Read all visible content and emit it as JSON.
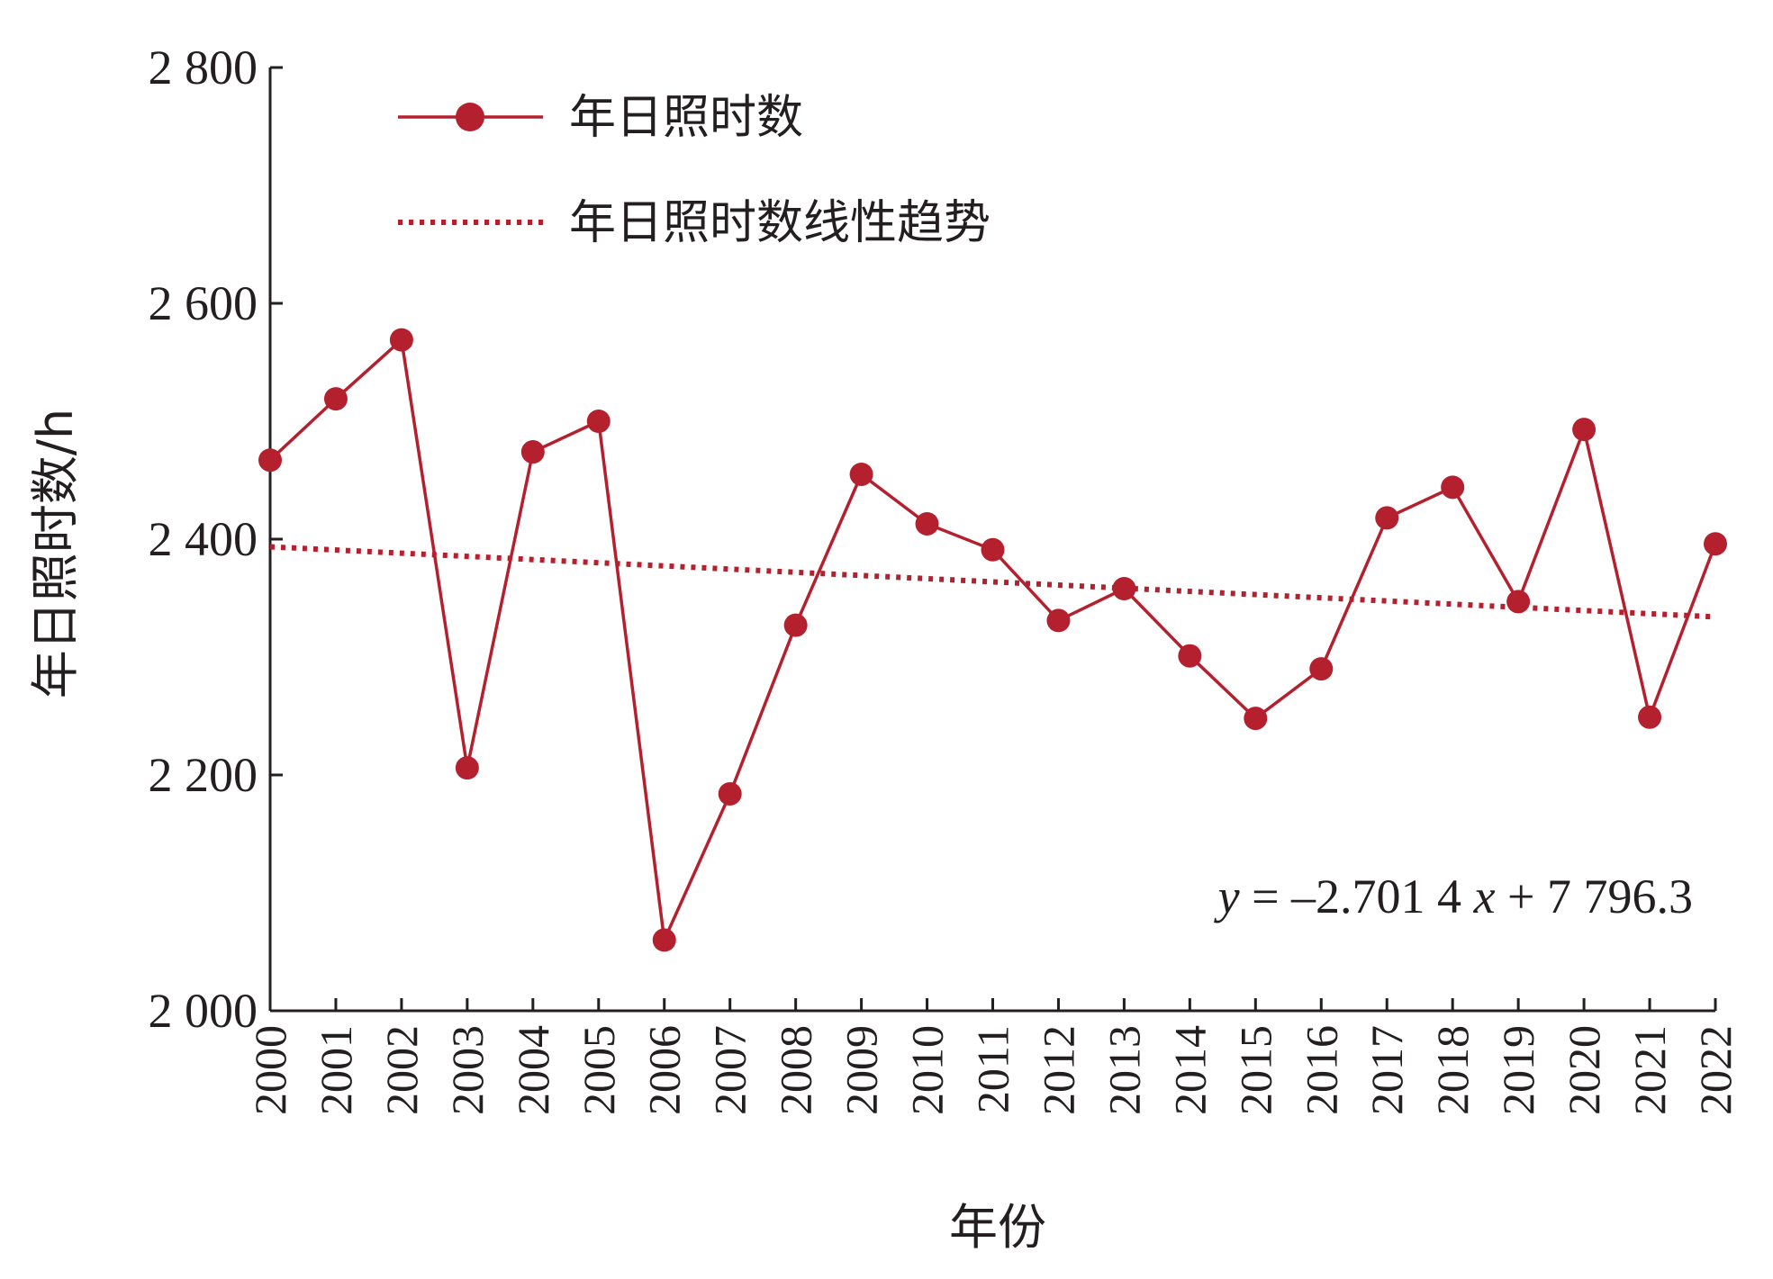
{
  "chart_data": {
    "type": "line",
    "title": "",
    "xlabel": "年份",
    "ylabel": "年日照时数/h",
    "ylim": [
      2000,
      2800
    ],
    "yticks": [
      2000,
      2200,
      2400,
      2600,
      2800
    ],
    "ytick_labels": [
      "2 000",
      "2 200",
      "2 400",
      "2 600",
      "2 800"
    ],
    "categories": [
      "2000",
      "2001",
      "2002",
      "2003",
      "2004",
      "2005",
      "2006",
      "2007",
      "2008",
      "2009",
      "2010",
      "2011",
      "2012",
      "2013",
      "2014",
      "2015",
      "2016",
      "2017",
      "2018",
      "2019",
      "2020",
      "2021",
      "2022"
    ],
    "series": [
      {
        "name": "年日照时数",
        "color": "#b5202e",
        "values": [
          2467,
          2519,
          2569,
          2206,
          2474,
          2500,
          2060,
          2184,
          2327,
          2455,
          2413,
          2391,
          2331,
          2358,
          2301,
          2248,
          2290,
          2418,
          2444,
          2347,
          2493,
          2249,
          2396
        ]
      },
      {
        "name": "年日照时数线性趋势",
        "color": "#b5202e",
        "style": "dotted",
        "trend": {
          "slope": -2.7014,
          "intercept": 7796.3
        }
      }
    ],
    "equation": {
      "y": "y",
      "rest1": " = –2.701 4 ",
      "x": "x",
      "rest2": " + 7 796.3"
    },
    "legend_position": "top-left",
    "grid": false
  }
}
